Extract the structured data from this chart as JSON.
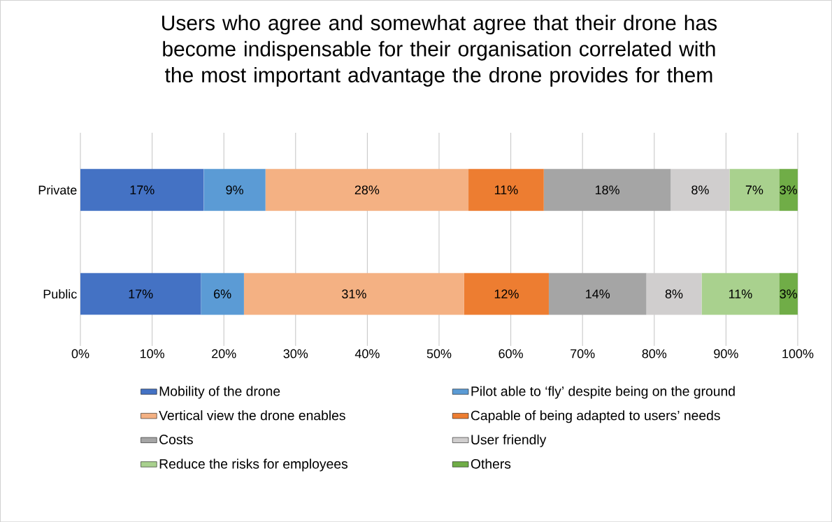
{
  "chart_data": {
    "type": "bar",
    "orientation": "horizontal",
    "stacked": true,
    "title": "Users who agree and somewhat agree that their drone has become indispensable for their organisation correlated with the most important advantage the drone provides for them",
    "categories": [
      "Private",
      "Public"
    ],
    "series": [
      {
        "name": "Mobility of the drone",
        "color": "#4472c4",
        "values": [
          17.2,
          16.8
        ],
        "value_labels": [
          "17%",
          "17%"
        ]
      },
      {
        "name": "Pilot able to ‘fly’ despite being on the ground",
        "color": "#5b9bd5",
        "values": [
          8.6,
          6.0
        ],
        "value_labels": [
          "9%",
          "6%"
        ]
      },
      {
        "name": "Vertical view the drone enables",
        "color": "#f4b183",
        "values": [
          28.3,
          30.7
        ],
        "value_labels": [
          "28%",
          "31%"
        ]
      },
      {
        "name": "Capable of being adapted to users’ needs",
        "color": "#ed7d31",
        "values": [
          10.5,
          11.8
        ],
        "value_labels": [
          "11%",
          "12%"
        ]
      },
      {
        "name": "Costs",
        "color": "#a5a5a5",
        "values": [
          17.7,
          13.6
        ],
        "value_labels": [
          "18%",
          "14%"
        ]
      },
      {
        "name": "User friendly",
        "color": "#d0cece",
        "values": [
          8.2,
          7.7
        ],
        "value_labels": [
          "8%",
          "8%"
        ]
      },
      {
        "name": "Reduce the risks for employees",
        "color": "#a9d18e",
        "values": [
          6.9,
          10.8
        ],
        "value_labels": [
          "7%",
          "11%"
        ]
      },
      {
        "name": "Others",
        "color": "#70ad47",
        "values": [
          2.6,
          2.6
        ],
        "value_labels": [
          "3%",
          "3%"
        ]
      }
    ],
    "xlim": [
      0,
      100
    ],
    "xticks": [
      {
        "value": 0,
        "label": "0%"
      },
      {
        "value": 10,
        "label": "10%"
      },
      {
        "value": 20,
        "label": "20%"
      },
      {
        "value": 30,
        "label": "30%"
      },
      {
        "value": 40,
        "label": "40%"
      },
      {
        "value": 50,
        "label": "50%"
      },
      {
        "value": 60,
        "label": "60%"
      },
      {
        "value": 70,
        "label": "70%"
      },
      {
        "value": 80,
        "label": "80%"
      },
      {
        "value": 90,
        "label": "90%"
      },
      {
        "value": 100,
        "label": "100%"
      }
    ],
    "grid": "x",
    "legend": "bottom"
  }
}
